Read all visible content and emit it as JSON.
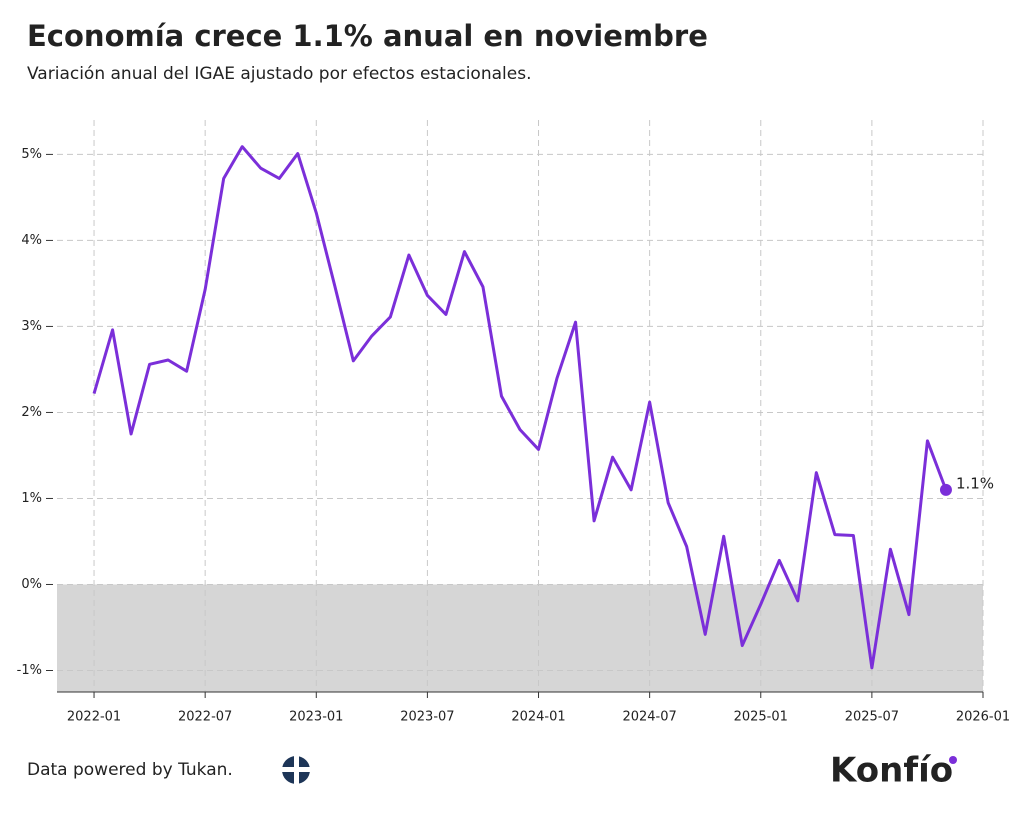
{
  "chart_data": {
    "type": "line",
    "title": "Economía crece 1.1% anual en noviembre",
    "subtitle": "Variación anual del IGAE ajustado por efectos estacionales.",
    "x": [
      "2022-01",
      "2022-02",
      "2022-03",
      "2022-04",
      "2022-05",
      "2022-06",
      "2022-07",
      "2022-08",
      "2022-09",
      "2022-10",
      "2022-11",
      "2022-12",
      "2023-01",
      "2023-02",
      "2023-03",
      "2023-04",
      "2023-05",
      "2023-06",
      "2023-07",
      "2023-08",
      "2023-09",
      "2023-10",
      "2023-11",
      "2023-12",
      "2024-01",
      "2024-02",
      "2024-03",
      "2024-04",
      "2024-05",
      "2024-06",
      "2024-07",
      "2024-08",
      "2024-09",
      "2024-10",
      "2024-11",
      "2024-12",
      "2025-01",
      "2025-02",
      "2025-03",
      "2025-04",
      "2025-05",
      "2025-06",
      "2025-07",
      "2025-08",
      "2025-09",
      "2025-10",
      "2025-11"
    ],
    "series": [
      {
        "name": "IGAE",
        "color": "#7b2fd9",
        "values": [
          2.22,
          2.96,
          1.75,
          2.56,
          2.61,
          2.48,
          3.43,
          4.72,
          5.09,
          4.84,
          4.72,
          5.01,
          4.32,
          3.47,
          2.6,
          2.89,
          3.11,
          3.83,
          3.36,
          3.14,
          3.87,
          3.46,
          2.19,
          1.8,
          1.57,
          2.4,
          3.05,
          0.74,
          1.48,
          1.1,
          2.12,
          0.95,
          0.44,
          -0.58,
          0.56,
          -0.71,
          -0.23,
          0.28,
          -0.19,
          1.3,
          0.58,
          0.57,
          -0.97,
          0.41,
          -0.35,
          1.67,
          1.1
        ],
        "last_label": "1.1%"
      }
    ],
    "xlim": [
      "2021-11",
      "2026-01"
    ],
    "xticks": [
      "2022-01",
      "2022-07",
      "2023-01",
      "2023-07",
      "2024-01",
      "2024-07",
      "2025-01",
      "2025-07",
      "2026-01"
    ],
    "ylim": [
      -1.25,
      5.4
    ],
    "yticks": [
      {
        "value": -1,
        "label": "-1%"
      },
      {
        "value": 0,
        "label": "0%"
      },
      {
        "value": 1,
        "label": "1%"
      },
      {
        "value": 2,
        "label": "2%"
      },
      {
        "value": 3,
        "label": "3%"
      },
      {
        "value": 4,
        "label": "4%"
      },
      {
        "value": 5,
        "label": "5%"
      }
    ],
    "grid": true,
    "negative_shade_color": "#d6d6d6",
    "source": "Data powered by Tukan.",
    "logo": "Konfío"
  }
}
